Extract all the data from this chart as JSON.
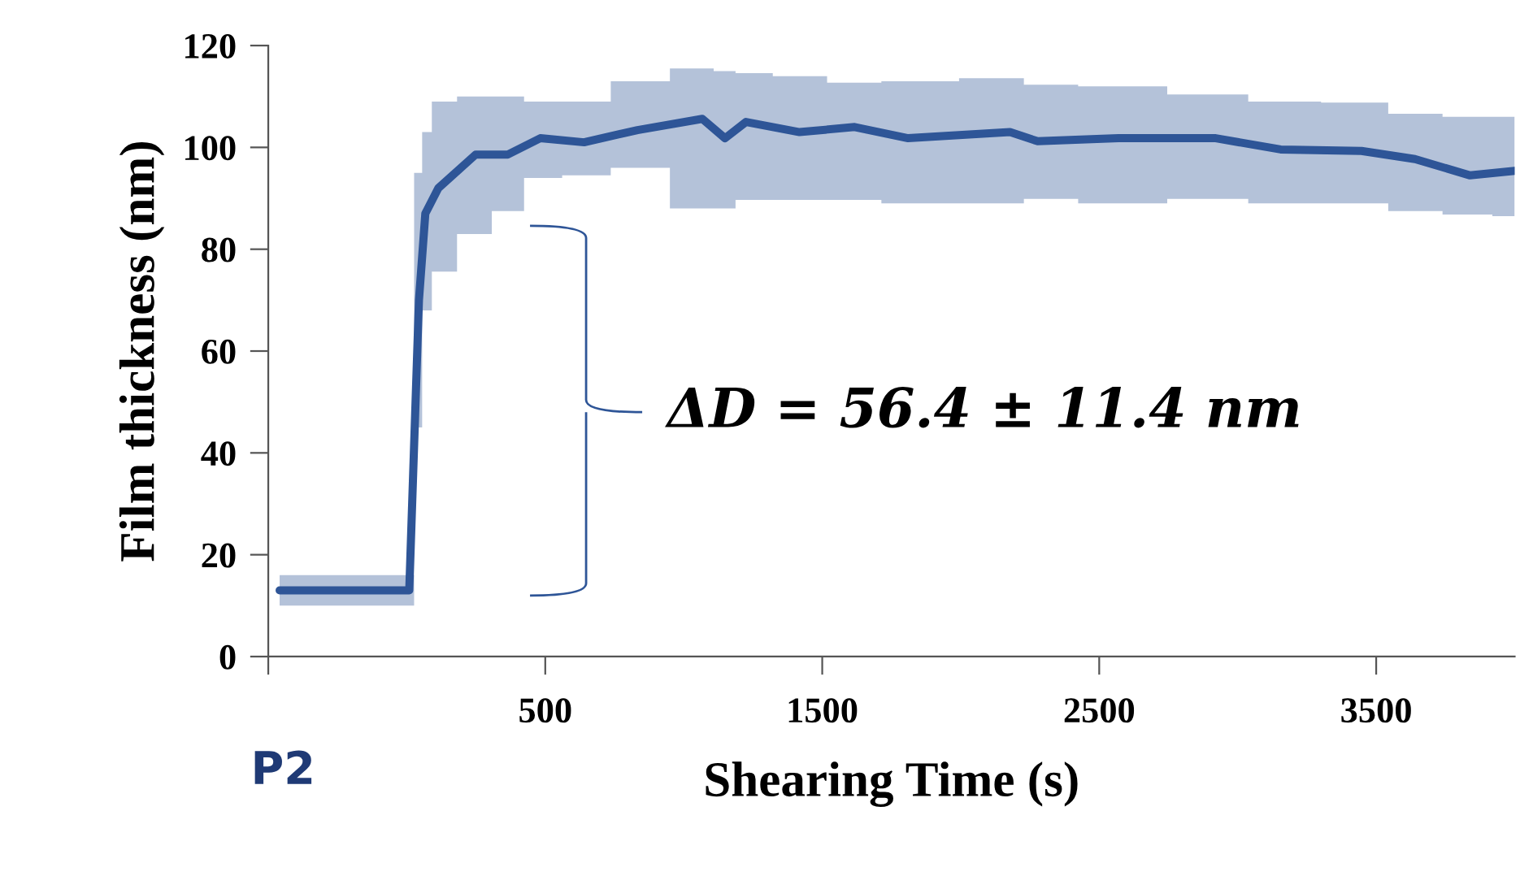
{
  "chart_data": {
    "type": "line",
    "xlabel": "Shearing Time (s)",
    "ylabel": "Film thickness (nm)",
    "xlim": [
      -500,
      4000
    ],
    "xticks": [
      {
        "value": -500,
        "label": null
      },
      500,
      1500,
      2500,
      3500
    ],
    "ylim": [
      0,
      120
    ],
    "yticks": [
      0,
      20,
      40,
      60,
      80,
      100,
      120
    ],
    "grid": false,
    "legend": false,
    "marker": "none",
    "line_style": "solid",
    "annotations": [
      "P2",
      "ΔD = 56.4 ± 11.4 nm"
    ],
    "series": [
      {
        "color": "#2e5597",
        "x": [
          -459,
          9,
          44,
          67,
          114,
          249,
          365,
          482,
          640,
          833,
          1067,
          1149,
          1225,
          1418,
          1617,
          1810,
          2178,
          2278,
          2570,
          2921,
          3155,
          3447,
          3640,
          3839,
          4000
        ],
        "values": [
          13,
          13,
          70,
          87,
          92,
          98.6,
          98.6,
          101.8,
          101,
          103.4,
          105.6,
          101.8,
          105,
          103,
          104,
          101.8,
          103,
          101.2,
          101.8,
          101.8,
          99.6,
          99.3,
          97.7,
          94.5,
          95.4
        ],
        "lower": [
          10,
          10,
          45,
          68,
          75.6,
          83,
          87.5,
          94,
          94.5,
          96,
          88,
          88,
          89.7,
          89.7,
          89.7,
          89,
          89,
          89.9,
          89,
          89.9,
          89,
          89,
          87.5,
          86.8,
          86.5
        ],
        "upper": [
          16,
          16,
          95,
          103,
          109,
          110,
          110,
          109,
          109,
          113,
          115.5,
          115,
          114.6,
          114,
          112.7,
          113,
          113.6,
          112.3,
          112,
          110.4,
          109,
          108.8,
          106.6,
          106,
          106
        ]
      }
    ]
  }
}
